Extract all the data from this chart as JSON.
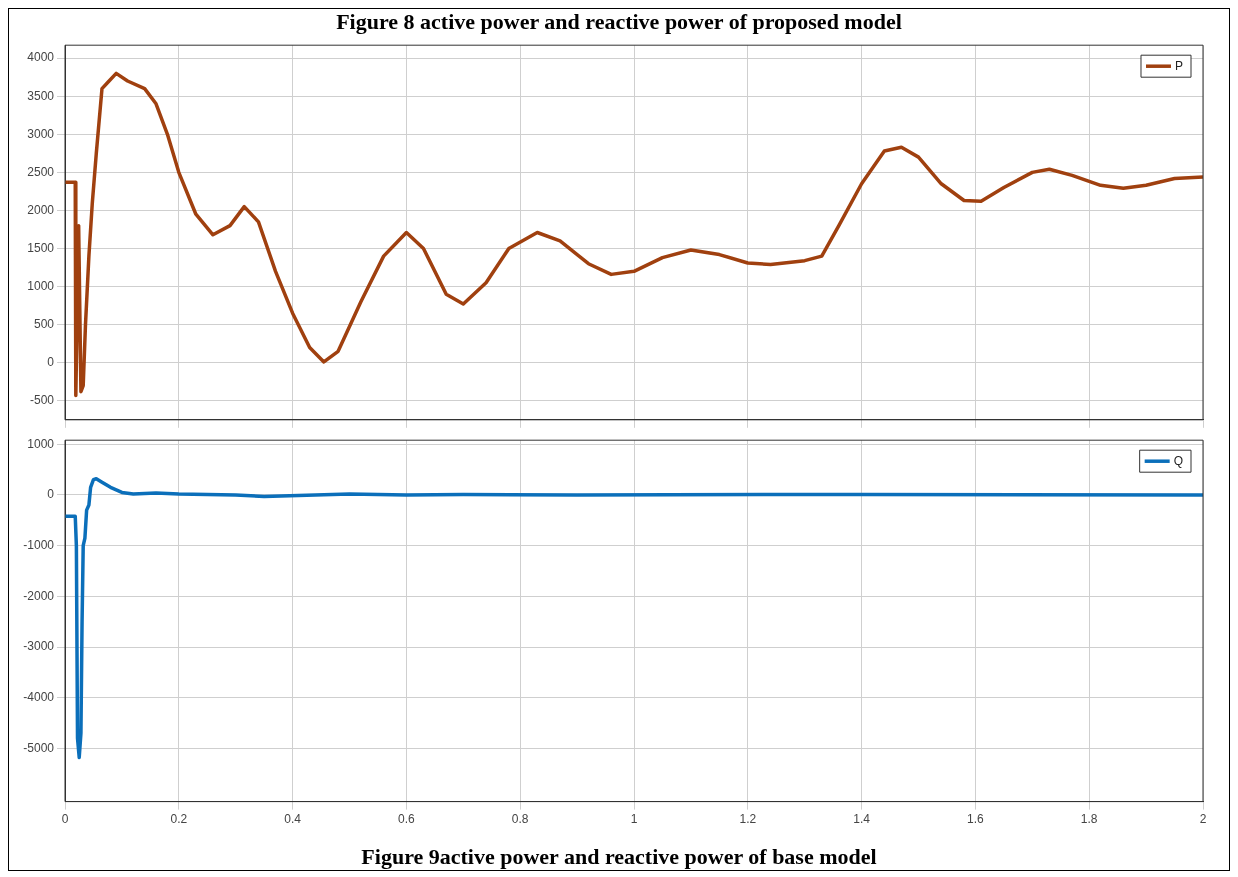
{
  "chart_data": [
    {
      "type": "line",
      "annotations": [
        "Figure 8 active power and reactive power of proposed model"
      ],
      "xlim": [
        0,
        2
      ],
      "xticks": [
        0,
        0.2,
        0.4,
        0.6,
        0.8,
        1,
        1.2,
        1.4,
        1.6,
        1.8,
        2
      ],
      "ylim": [
        -750,
        4170
      ],
      "yticks": [
        -500,
        0,
        500,
        1000,
        1500,
        2000,
        2500,
        3000,
        3500,
        4000
      ],
      "grid": true,
      "legend": "top right",
      "tick_labels": "y",
      "series": [
        {
          "name": "P",
          "color": "#a0400f",
          "x": [
            0,
            0.018,
            0.019,
            0.024,
            0.028,
            0.032,
            0.036,
            0.042,
            0.048,
            0.055,
            0.065,
            0.075,
            0.09,
            0.11,
            0.14,
            0.16,
            0.18,
            0.2,
            0.23,
            0.26,
            0.29,
            0.315,
            0.34,
            0.37,
            0.4,
            0.43,
            0.455,
            0.48,
            0.52,
            0.56,
            0.6,
            0.63,
            0.67,
            0.7,
            0.74,
            0.78,
            0.83,
            0.87,
            0.92,
            0.96,
            1,
            1.05,
            1.1,
            1.15,
            1.2,
            1.24,
            1.3,
            1.33,
            1.36,
            1.4,
            1.44,
            1.47,
            1.5,
            1.54,
            1.58,
            1.61,
            1.65,
            1.7,
            1.73,
            1.77,
            1.82,
            1.86,
            1.9,
            1.95,
            2
          ],
          "values": [
            2370,
            2370,
            -430,
            1800,
            -380,
            -300,
            500,
            1400,
            2100,
            2750,
            3600,
            3680,
            3800,
            3700,
            3600,
            3400,
            3000,
            2500,
            1950,
            1680,
            1800,
            2050,
            1850,
            1200,
            650,
            200,
            10,
            150,
            800,
            1400,
            1710,
            1500,
            900,
            770,
            1050,
            1500,
            1710,
            1600,
            1300,
            1160,
            1200,
            1380,
            1480,
            1420,
            1310,
            1290,
            1340,
            1400,
            1800,
            2350,
            2780,
            2830,
            2700,
            2350,
            2130,
            2120,
            2300,
            2500,
            2540,
            2460,
            2330,
            2290,
            2330,
            2420,
            2440
          ]
        }
      ]
    },
    {
      "type": "line",
      "annotations": [
        "Figure 9active power and reactive power of base model"
      ],
      "xlim": [
        0,
        2
      ],
      "xticks": [
        0,
        0.2,
        0.4,
        0.6,
        0.8,
        1,
        1.2,
        1.4,
        1.6,
        1.8,
        2
      ],
      "ylim": [
        -6050,
        1080
      ],
      "yticks": [
        -5000,
        -4000,
        -3000,
        -2000,
        -1000,
        0,
        1000
      ],
      "grid": true,
      "legend": "top right",
      "series": [
        {
          "name": "Q",
          "color": "#0b6fba",
          "x": [
            0,
            0.018,
            0.02,
            0.022,
            0.025,
            0.028,
            0.03,
            0.032,
            0.035,
            0.038,
            0.042,
            0.045,
            0.05,
            0.055,
            0.065,
            0.08,
            0.1,
            0.12,
            0.16,
            0.2,
            0.3,
            0.35,
            0.5,
            0.6,
            0.7,
            0.9,
            1.4,
            2
          ],
          "values": [
            -420,
            -420,
            -1000,
            -4800,
            -5180,
            -4700,
            -2500,
            -1000,
            -850,
            -300,
            -200,
            150,
            300,
            320,
            250,
            150,
            50,
            20,
            40,
            20,
            0,
            -30,
            20,
            0,
            10,
            0,
            10,
            0
          ]
        }
      ]
    }
  ]
}
